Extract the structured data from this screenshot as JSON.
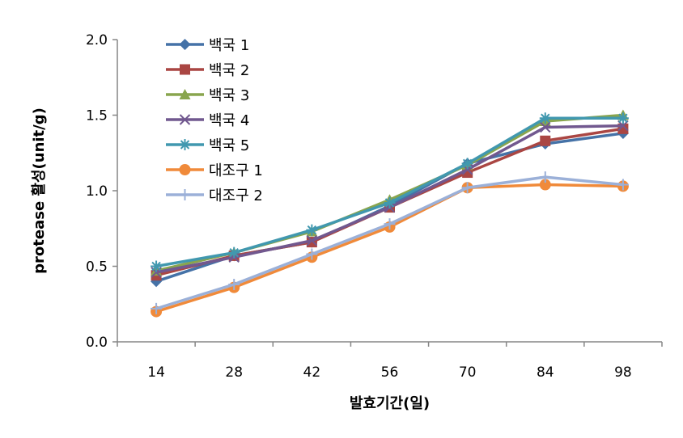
{
  "chart_data": {
    "type": "line",
    "xlabel": "발효기간(일)",
    "ylabel": "protease 활성(unit/g)",
    "categories": [
      "14",
      "28",
      "42",
      "56",
      "70",
      "84",
      "98"
    ],
    "ylim": [
      0,
      2.0
    ],
    "yticks": [
      "0.0",
      "0.5",
      "1.0",
      "1.5",
      "2.0"
    ],
    "grid": false,
    "legend_position": "top-left",
    "series": [
      {
        "name": "백국 1",
        "values": [
          0.4,
          0.57,
          0.66,
          0.9,
          1.18,
          1.31,
          1.38
        ],
        "color": "#4572A7",
        "marker": "diamond"
      },
      {
        "name": "백국 2",
        "values": [
          0.44,
          0.57,
          0.66,
          0.89,
          1.12,
          1.33,
          1.41
        ],
        "color": "#AA4643",
        "marker": "square"
      },
      {
        "name": "백국 3",
        "values": [
          0.47,
          0.59,
          0.73,
          0.94,
          1.17,
          1.46,
          1.5
        ],
        "color": "#89A54E",
        "marker": "triangle"
      },
      {
        "name": "백국 4",
        "values": [
          0.46,
          0.56,
          0.67,
          0.89,
          1.14,
          1.42,
          1.43
        ],
        "color": "#71588F",
        "marker": "x"
      },
      {
        "name": "백국 5",
        "values": [
          0.5,
          0.59,
          0.74,
          0.92,
          1.18,
          1.48,
          1.48
        ],
        "color": "#4198AF",
        "marker": "asterisk"
      },
      {
        "name": "대조구 1",
        "values": [
          0.2,
          0.36,
          0.56,
          0.76,
          1.02,
          1.04,
          1.03
        ],
        "color": "#F08A3A",
        "marker": "circle"
      },
      {
        "name": "대조구 2",
        "values": [
          0.22,
          0.38,
          0.58,
          0.78,
          1.02,
          1.09,
          1.04
        ],
        "color": "#9BB0D8",
        "marker": "plus"
      }
    ]
  }
}
